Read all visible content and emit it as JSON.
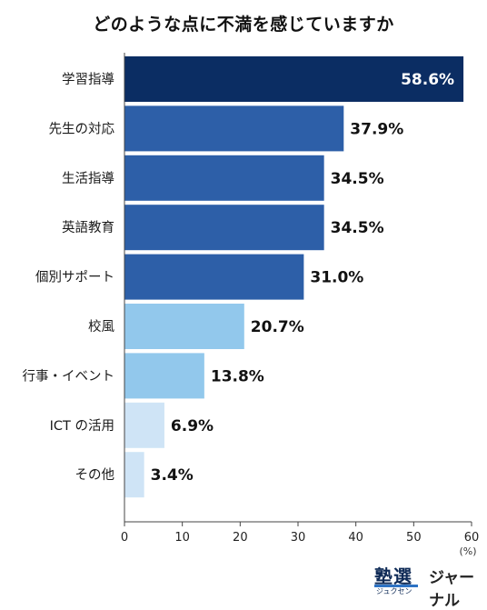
{
  "chart_data": {
    "type": "bar",
    "orientation": "horizontal",
    "title": "どのような点に不満を感じていますか",
    "categories": [
      "学習指導",
      "先生の対応",
      "生活指導",
      "英語教育",
      "個別サポート",
      "校風",
      "行事・イベント",
      "ICT の活用",
      "その他"
    ],
    "values": [
      58.6,
      37.9,
      34.5,
      34.5,
      31.0,
      20.7,
      13.8,
      6.9,
      3.4
    ],
    "value_labels": [
      "58.6%",
      "37.9%",
      "34.5%",
      "34.5%",
      "31.0%",
      "20.7%",
      "13.8%",
      "6.9%",
      "3.4%"
    ],
    "bar_colors": [
      "#0b2d63",
      "#2d5fa8",
      "#2d5fa8",
      "#2d5fa8",
      "#2d5fa8",
      "#92c8ec",
      "#92c8ec",
      "#cfe4f6",
      "#cfe4f6"
    ],
    "xlim": [
      0,
      60
    ],
    "xticks": [
      "0",
      "10",
      "20",
      "30",
      "40",
      "50",
      "60"
    ],
    "x_unit": "(%)",
    "grid": false,
    "legend": "none"
  },
  "logo": {
    "main": "塾選",
    "sub": "ジャーナル",
    "ruby": "ジュクセン"
  }
}
